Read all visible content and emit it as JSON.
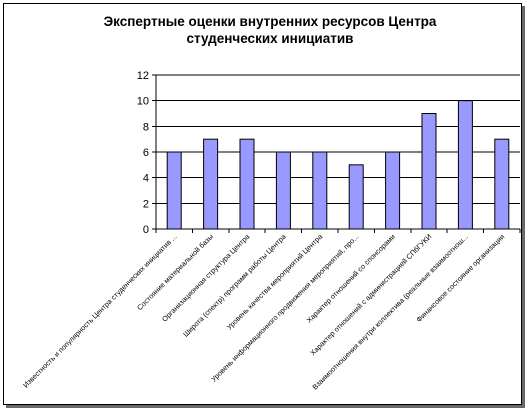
{
  "chart_data": {
    "type": "bar",
    "title_lines": [
      "Экспертные оценки внутренних ресурсов Центра",
      "студенческих инициатив"
    ],
    "categories": [
      "Известность и популярность Центра студенческих инициатив ...",
      "Состояние материальной базы",
      "Организационная структура Центра",
      "Широта (спектр) программ работы Центра",
      "Уровень качества мероприятий Центра",
      "Уровень информационного продвижения мероприятий, про...",
      "Характер отношений со спонсорами",
      "Характер отношений с администрацией СПбГУКИ",
      "Взаимоотношения внутри коллектива (реальные взаимоотнош...",
      "Финансовое состояние организации"
    ],
    "values": [
      6,
      7,
      7,
      6,
      6,
      5,
      6,
      9,
      10,
      7
    ],
    "ylim": [
      0,
      12
    ],
    "yticks": [
      0,
      2,
      4,
      6,
      8,
      10,
      12
    ],
    "grid": true,
    "legend": "none",
    "colors": {
      "bar_fill": "#9999ff",
      "bar_stroke": "#000000",
      "grid": "#000000",
      "plot_bg": "#ffffff"
    }
  }
}
